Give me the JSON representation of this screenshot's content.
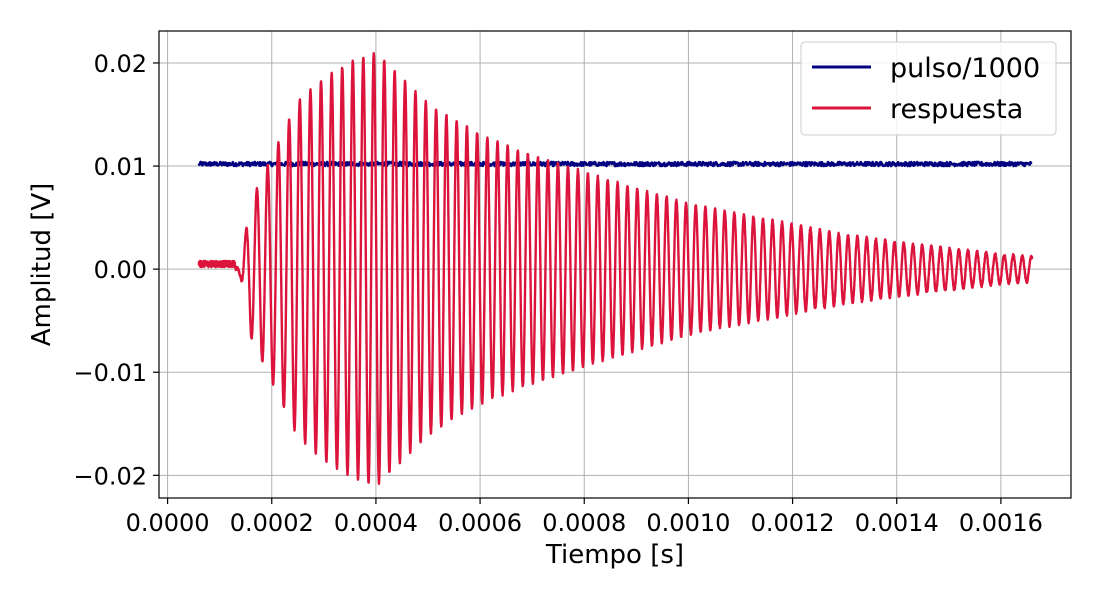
{
  "chart_data": {
    "type": "line",
    "title": "",
    "xlabel": "Tiempo [s]",
    "ylabel": "Amplitud [V]",
    "xlim": [
      -1.65e-05,
      0.0017346
    ],
    "ylim": [
      -0.0222,
      0.0231
    ],
    "x_ticks": [
      0.0,
      0.0002,
      0.0004,
      0.0006,
      0.0008,
      0.001,
      0.0012,
      0.0014,
      0.0016
    ],
    "x_tick_labels": [
      "0.0000",
      "0.0002",
      "0.0004",
      "0.0006",
      "0.0008",
      "0.0010",
      "0.0012",
      "0.0014",
      "0.0016"
    ],
    "y_ticks": [
      -0.02,
      -0.01,
      0.0,
      0.01,
      0.02
    ],
    "y_tick_labels": [
      "−0.02",
      "−0.01",
      "0.00",
      "0.01",
      "0.02"
    ],
    "grid": true,
    "legend_position": "top-right",
    "series": [
      {
        "name": "pulso/1000",
        "color": "#000080",
        "x_range": [
          6e-05,
          0.00166
        ],
        "level": 0.0102,
        "noise": 0.0002
      },
      {
        "name": "respuesta",
        "color": "#dc143c",
        "x_range": [
          6e-05,
          0.00166
        ],
        "baseline_value": 0.0005,
        "oscillation_start": 0.00013,
        "envelope": [
          {
            "x": 0.00013,
            "amp": 0.0
          },
          {
            "x": 0.00014,
            "amp": 0.0007
          },
          {
            "x": 0.00016,
            "amp": 0.0065
          },
          {
            "x": 0.00019,
            "amp": 0.0098
          },
          {
            "x": 0.00022,
            "amp": 0.013
          },
          {
            "x": 0.00025,
            "amp": 0.0162
          },
          {
            "x": 0.0003,
            "amp": 0.0185
          },
          {
            "x": 0.00035,
            "amp": 0.02
          },
          {
            "x": 0.0004,
            "amp": 0.021
          },
          {
            "x": 0.00045,
            "amp": 0.0185
          },
          {
            "x": 0.0005,
            "amp": 0.016
          },
          {
            "x": 0.0006,
            "amp": 0.013
          },
          {
            "x": 0.0007,
            "amp": 0.011
          },
          {
            "x": 0.0008,
            "amp": 0.0094
          },
          {
            "x": 0.0009,
            "amp": 0.0078
          },
          {
            "x": 0.001,
            "amp": 0.0063
          },
          {
            "x": 0.0011,
            "amp": 0.0053
          },
          {
            "x": 0.0012,
            "amp": 0.0043
          },
          {
            "x": 0.0013,
            "amp": 0.0033
          },
          {
            "x": 0.0014,
            "amp": 0.0026
          },
          {
            "x": 0.0015,
            "amp": 0.002
          },
          {
            "x": 0.0016,
            "amp": 0.0014
          },
          {
            "x": 0.00166,
            "amp": 0.0012
          }
        ],
        "frequency_hz": 48000,
        "frequency_hz_end": 58000
      }
    ]
  }
}
